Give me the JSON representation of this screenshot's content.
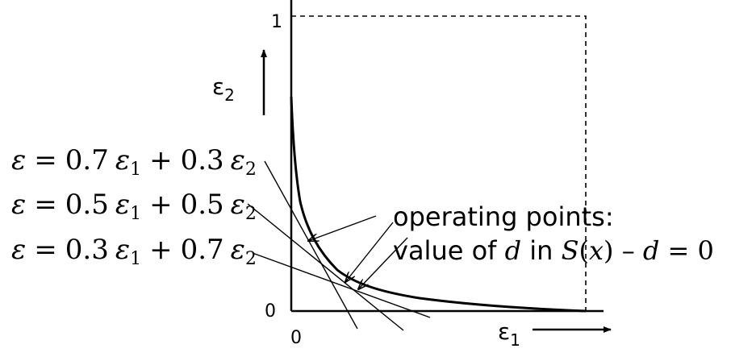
{
  "axes": {
    "y_tick_top": "1",
    "y_tick_origin": "0",
    "x_tick_origin": "0",
    "y_axis_symbol": "ε",
    "y_axis_subscript": "2",
    "x_axis_symbol": "ε",
    "x_axis_subscript": "1"
  },
  "equations": [
    {
      "lhs": "ε",
      "coef1": "0.7",
      "eps1": "ε",
      "sub1": "1",
      "coef2": "0.3",
      "eps2": "ε",
      "sub2": "2"
    },
    {
      "lhs": "ε",
      "coef1": "0.5",
      "eps1": "ε",
      "sub1": "1",
      "coef2": "0.5",
      "eps2": "ε",
      "sub2": "2"
    },
    {
      "lhs": "ε",
      "coef1": "0.3",
      "eps1": "ε",
      "sub1": "1",
      "coef2": "0.7",
      "eps2": "ε",
      "sub2": "2"
    }
  ],
  "operators": {
    "equals": "=",
    "plus": "+"
  },
  "annotation": {
    "line1": "operating points:",
    "line2_prefix": "value of ",
    "var_d": "d",
    "line2_middle": " in ",
    "func": "S",
    "func_open": "(",
    "func_arg": "x",
    "func_close": ")",
    "minus": " – ",
    "var_d2": "d",
    "tail": " = 0"
  },
  "colors": {
    "ink": "#000000",
    "background": "#ffffff"
  }
}
